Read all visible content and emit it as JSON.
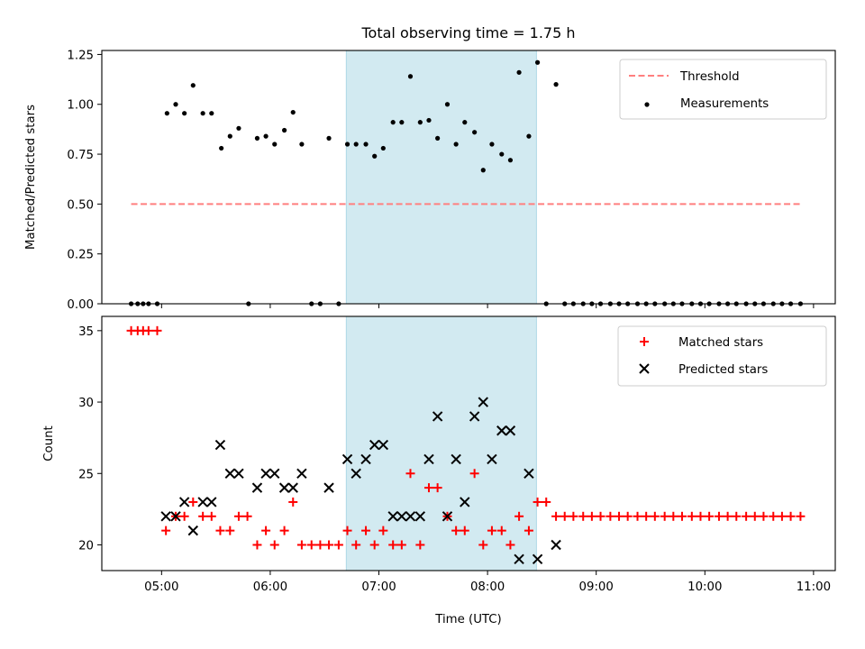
{
  "chart_data": {
    "title": "Total observing time = 1.75 h",
    "xlabel": "Time (UTC)",
    "x_unit": "hours (UTC)",
    "xlim": [
      4.45,
      11.2
    ],
    "xticks": [
      5,
      6,
      7,
      8,
      9,
      10,
      11
    ],
    "xtick_labels": [
      "05:00",
      "06:00",
      "07:00",
      "08:00",
      "09:00",
      "10:00",
      "11:00"
    ],
    "shaded_span": {
      "x_start": 6.7,
      "x_end": 8.45,
      "color": "#add8e6"
    },
    "colors": {
      "threshold": "#ff7f7f",
      "measurements": "#000000",
      "matched": "#ff0000",
      "predicted": "#000000",
      "span": "#add8e6"
    },
    "panels": [
      {
        "type": "scatter",
        "ylabel": "Matched/Predicted stars",
        "ylim": [
          0,
          1.27
        ],
        "yticks": [
          0,
          0.25,
          0.5,
          0.75,
          1.0,
          1.25
        ],
        "ytick_labels": [
          "0.00",
          "0.25",
          "0.50",
          "0.75",
          "1.00",
          "1.25"
        ],
        "legend_position": "top-right",
        "threshold": {
          "name": "Threshold",
          "value": 0.5,
          "x_range": [
            4.72,
            10.88
          ]
        },
        "series": [
          {
            "name": "Measurements",
            "marker": "dot",
            "x": [
              4.72,
              4.78,
              4.83,
              4.88,
              4.96,
              5.05,
              5.13,
              5.21,
              5.29,
              5.38,
              5.46,
              5.55,
              5.63,
              5.71,
              5.8,
              5.88,
              5.96,
              6.04,
              6.13,
              6.21,
              6.29,
              6.38,
              6.46,
              6.54,
              6.63,
              6.71,
              6.79,
              6.88,
              6.96,
              7.04,
              7.13,
              7.21,
              7.29,
              7.38,
              7.46,
              7.54,
              7.63,
              7.71,
              7.79,
              7.88,
              7.96,
              8.04,
              8.13,
              8.21,
              8.29,
              8.38,
              8.46,
              8.54,
              8.63,
              8.71,
              8.79,
              8.88,
              8.96,
              9.04,
              9.13,
              9.21,
              9.29,
              9.38,
              9.46,
              9.54,
              9.63,
              9.71,
              9.79,
              9.88,
              9.96,
              10.04,
              10.13,
              10.21,
              10.29,
              10.38,
              10.46,
              10.54,
              10.63,
              10.71,
              10.79,
              10.88
            ],
            "y": [
              0,
              0,
              0,
              0,
              0,
              0.955,
              1.0,
              0.955,
              1.095,
              0.955,
              0.955,
              0.78,
              0.84,
              0.88,
              0,
              0.83,
              0.84,
              0.8,
              0.87,
              0.96,
              0.8,
              0,
              0,
              0.83,
              0,
              0.8,
              0.8,
              0.8,
              0.74,
              0.78,
              0.91,
              0.91,
              1.14,
              0.91,
              0.92,
              0.83,
              1.0,
              0.8,
              0.91,
              0.86,
              0.67,
              0.8,
              0.75,
              0.72,
              1.16,
              0.84,
              1.21,
              0,
              1.1,
              0,
              0,
              0,
              0,
              0,
              0,
              0,
              0,
              0,
              0,
              0,
              0,
              0,
              0,
              0,
              0,
              0,
              0,
              0,
              0,
              0,
              0,
              0,
              0,
              0,
              0,
              0
            ]
          }
        ]
      },
      {
        "type": "scatter",
        "ylabel": "Count",
        "ylim": [
          18.2,
          36.0
        ],
        "yticks": [
          20,
          25,
          30,
          35
        ],
        "ytick_labels": [
          "20",
          "25",
          "30",
          "35"
        ],
        "legend_position": "top-right",
        "series": [
          {
            "name": "Matched stars",
            "marker": "plus",
            "x": [
              4.72,
              4.78,
              4.83,
              4.88,
              4.96,
              5.04,
              5.13,
              5.21,
              5.29,
              5.38,
              5.46,
              5.54,
              5.63,
              5.71,
              5.79,
              5.88,
              5.96,
              6.04,
              6.13,
              6.21,
              6.29,
              6.38,
              6.46,
              6.54,
              6.63,
              6.71,
              6.79,
              6.88,
              6.96,
              7.04,
              7.13,
              7.21,
              7.29,
              7.38,
              7.46,
              7.54,
              7.63,
              7.71,
              7.79,
              7.88,
              7.96,
              8.04,
              8.13,
              8.21,
              8.29,
              8.38,
              8.46,
              8.54,
              8.63,
              8.71,
              8.79,
              8.88,
              8.96,
              9.04,
              9.13,
              9.21,
              9.29,
              9.38,
              9.46,
              9.54,
              9.63,
              9.71,
              9.79,
              9.88,
              9.96,
              10.04,
              10.13,
              10.21,
              10.29,
              10.38,
              10.46,
              10.54,
              10.63,
              10.71,
              10.79,
              10.88
            ],
            "y": [
              35,
              35,
              35,
              35,
              35,
              21,
              22,
              22,
              23,
              22,
              22,
              21,
              21,
              22,
              22,
              20,
              21,
              20,
              21,
              23,
              20,
              20,
              20,
              20,
              20,
              21,
              20,
              21,
              20,
              21,
              20,
              20,
              25,
              20,
              24,
              24,
              22,
              21,
              21,
              25,
              20,
              21,
              21,
              20,
              22,
              21,
              23,
              23,
              22,
              22,
              22,
              22,
              22,
              22,
              22,
              22,
              22,
              22,
              22,
              22,
              22,
              22,
              22,
              22,
              22,
              22,
              22,
              22,
              22,
              22,
              22,
              22,
              22,
              22,
              22,
              22
            ]
          },
          {
            "name": "Predicted stars",
            "marker": "x",
            "x": [
              5.04,
              5.13,
              5.21,
              5.29,
              5.38,
              5.46,
              5.54,
              5.63,
              5.71,
              5.88,
              5.96,
              6.04,
              6.13,
              6.21,
              6.29,
              6.54,
              6.71,
              6.79,
              6.88,
              6.96,
              7.04,
              7.13,
              7.21,
              7.29,
              7.38,
              7.46,
              7.54,
              7.63,
              7.71,
              7.79,
              7.88,
              7.96,
              8.04,
              8.13,
              8.21,
              8.29,
              8.38,
              8.46,
              8.63
            ],
            "y": [
              22,
              22,
              23,
              21,
              23,
              23,
              27,
              25,
              25,
              24,
              25,
              25,
              24,
              24,
              25,
              24,
              26,
              25,
              26,
              27,
              27,
              22,
              22,
              22,
              22,
              26,
              29,
              22,
              26,
              23,
              29,
              30,
              26,
              28,
              28,
              19,
              25,
              19,
              20
            ]
          }
        ]
      }
    ]
  }
}
